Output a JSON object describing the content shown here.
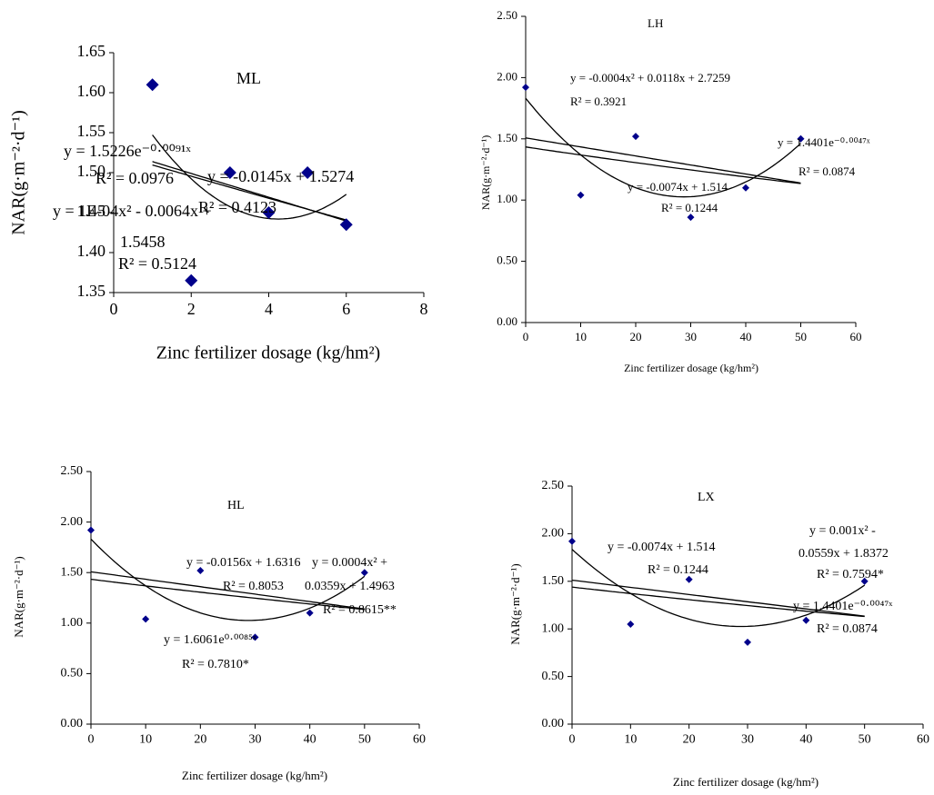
{
  "chart_data": [
    {
      "type": "scatter",
      "title": "ML",
      "x_label": "Zinc fertilizer dosage (kg/hm²)",
      "y_label": "NAR(g·m⁻²·d⁻¹)",
      "x": [
        1,
        2,
        3,
        4,
        5,
        6
      ],
      "values": [
        1.61,
        1.365,
        1.5,
        1.45,
        1.5,
        1.435
      ],
      "color": "#00008b",
      "xlim": [
        0,
        8
      ],
      "xticks": [
        0,
        2,
        4,
        6,
        8
      ],
      "ylim": [
        1.35,
        1.65
      ],
      "yticks": [
        1.35,
        {
          "value": 1.4,
          "label": "1.40"
        },
        1.45,
        {
          "value": 1.5,
          "label": "1.50"
        },
        1.55,
        {
          "value": 1.6,
          "label": "1.60"
        },
        1.65
      ],
      "trendlines": [
        "linear",
        "exponential",
        "polynomial"
      ],
      "annotations": [
        "y = 1.5226e⁻⁰·⁰⁰⁹¹ˣ",
        "R² = 0.0976",
        "y = -0.0145x + 1.5274",
        "y = 1E-04x² - 0.0064x +",
        "R² = 0.4123",
        "1.5458",
        "R² = 0.5124"
      ]
    },
    {
      "type": "scatter",
      "title": "LH",
      "x_label": "Zinc fertilizer dosage (kg/hm²)",
      "y_label": "NAR(g·m⁻²·d⁻¹)",
      "x": [
        0,
        10,
        20,
        30,
        40,
        50
      ],
      "values": [
        1.92,
        1.04,
        1.52,
        0.86,
        1.1,
        1.5
      ],
      "color": "#00008b",
      "xlim": [
        0,
        60
      ],
      "xticks": [
        0,
        10,
        20,
        30,
        40,
        50,
        60
      ],
      "ylim": [
        0,
        2.5
      ],
      "yticks": [
        {
          "value": 0,
          "label": "0.00"
        },
        {
          "value": 0.5,
          "label": "0.50"
        },
        {
          "value": 1,
          "label": "1.00"
        },
        {
          "value": 1.5,
          "label": "1.50"
        },
        {
          "value": 2,
          "label": "2.00"
        },
        {
          "value": 2.5,
          "label": "2.50"
        }
      ],
      "trendlines": [
        "linear",
        "exponential",
        "polynomial"
      ],
      "annotations": [
        "y = -0.0004x² + 0.0118x + 2.7259",
        "R² = 0.3921",
        "y = 1.4401e⁻⁰·⁰⁰⁴⁷ˣ",
        "R² = 0.0874",
        "y = -0.0074x + 1.514",
        "R² = 0.1244"
      ]
    },
    {
      "type": "scatter",
      "title": "HL",
      "x_label": "Zinc fertilizer dosage (kg/hm²)",
      "y_label": "NAR(g·m⁻²·d⁻¹)",
      "x": [
        0,
        10,
        20,
        30,
        40,
        50
      ],
      "values": [
        1.92,
        1.04,
        1.52,
        0.86,
        1.1,
        1.5
      ],
      "color": "#00008b",
      "xlim": [
        0,
        60
      ],
      "xticks": [
        0,
        10,
        20,
        30,
        40,
        50,
        60
      ],
      "ylim": [
        0,
        2.5
      ],
      "yticks": [
        {
          "value": 0,
          "label": "0.00"
        },
        {
          "value": 0.5,
          "label": "0.50"
        },
        {
          "value": 1,
          "label": "1.00"
        },
        {
          "value": 1.5,
          "label": "1.50"
        },
        {
          "value": 2,
          "label": "2.00"
        },
        {
          "value": 2.5,
          "label": "2.50"
        }
      ],
      "trendlines": [
        "linear",
        "exponential",
        "polynomial"
      ],
      "annotations": [
        "y = -0.0156x + 1.6316",
        "R² = 0.8053",
        "y = 0.0004x² +",
        "0.0359x + 1.4963",
        "R² = 0.8615**",
        "y = 1.6061e⁰·⁰⁰⁸⁵ˣ",
        "R² = 0.7810*"
      ]
    },
    {
      "type": "scatter",
      "title": "LX",
      "x_label": "Zinc fertilizer dosage (kg/hm²)",
      "y_label": "NAR(g·m⁻²·d⁻¹)",
      "x": [
        0,
        10,
        20,
        30,
        40,
        50
      ],
      "values": [
        1.92,
        1.05,
        1.52,
        0.86,
        1.09,
        1.5
      ],
      "color": "#00008b",
      "xlim": [
        0,
        60
      ],
      "xticks": [
        0,
        10,
        20,
        30,
        40,
        50,
        60
      ],
      "ylim": [
        0,
        2.5
      ],
      "yticks": [
        {
          "value": 0,
          "label": "0.00"
        },
        {
          "value": 0.5,
          "label": "0.50"
        },
        {
          "value": 1,
          "label": "1.00"
        },
        {
          "value": 1.5,
          "label": "1.50"
        },
        {
          "value": 2,
          "label": "2.00"
        },
        {
          "value": 2.5,
          "label": "2.50"
        }
      ],
      "trendlines": [
        "linear",
        "exponential",
        "polynomial"
      ],
      "annotations": [
        "y = -0.0074x + 1.514",
        "R² = 0.1244",
        "y = 0.001x² -",
        "0.0559x + 1.8372",
        "R² = 0.7594*",
        "y = 1.4401e⁻⁰·⁰⁰⁴⁷ˣ",
        "R² = 0.0874"
      ]
    }
  ]
}
